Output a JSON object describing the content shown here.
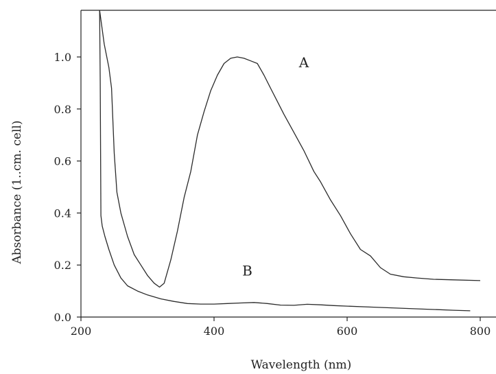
{
  "chart_data": {
    "type": "line",
    "title": "",
    "xlabel": "Wavelength (nm)",
    "ylabel": "Absorbance (1..cm. cell)",
    "xlim": [
      200,
      800
    ],
    "ylim": [
      0,
      1.15
    ],
    "grid": false,
    "legend": "none",
    "x_ticks": [
      200,
      400,
      600,
      800
    ],
    "x_tick_labels": [
      "200",
      "400",
      "600",
      "800"
    ],
    "y_ticks": [
      0.0,
      0.2,
      0.4,
      0.6,
      0.8,
      1.0
    ],
    "y_tick_labels": [
      "0.0",
      "0.2",
      "0.4",
      "0.6",
      "0.8",
      "1.0"
    ],
    "series": [
      {
        "name": "A",
        "label_position": {
          "x": 535,
          "y": 0.96
        },
        "x": [
          228,
          235,
          242,
          246,
          250,
          254,
          260,
          270,
          280,
          290,
          300,
          310,
          318,
          325,
          335,
          345,
          355,
          365,
          375,
          385,
          395,
          405,
          415,
          425,
          435,
          445,
          455,
          465,
          475,
          485,
          495,
          505,
          520,
          535,
          550,
          560,
          575,
          590,
          605,
          620,
          635,
          650,
          665,
          685,
          705,
          730,
          760,
          800
        ],
        "y": [
          1.18,
          1.05,
          0.96,
          0.88,
          0.63,
          0.48,
          0.4,
          0.31,
          0.24,
          0.2,
          0.16,
          0.13,
          0.115,
          0.13,
          0.22,
          0.33,
          0.46,
          0.56,
          0.7,
          0.79,
          0.87,
          0.93,
          0.975,
          0.995,
          1.0,
          0.995,
          0.985,
          0.975,
          0.93,
          0.88,
          0.83,
          0.78,
          0.71,
          0.64,
          0.56,
          0.52,
          0.45,
          0.39,
          0.32,
          0.26,
          0.235,
          0.19,
          0.165,
          0.155,
          0.15,
          0.145,
          0.143,
          0.14
        ]
      },
      {
        "name": "B",
        "label_position": {
          "x": 450,
          "y": 0.16
        },
        "x": [
          228,
          229,
          230,
          232,
          236,
          242,
          250,
          260,
          270,
          285,
          300,
          320,
          340,
          360,
          380,
          400,
          420,
          440,
          460,
          480,
          500,
          520,
          540,
          560,
          580,
          600,
          640,
          680,
          720,
          760,
          785
        ],
        "y": [
          1.18,
          0.9,
          0.39,
          0.35,
          0.31,
          0.26,
          0.2,
          0.15,
          0.12,
          0.1,
          0.085,
          0.07,
          0.06,
          0.052,
          0.05,
          0.05,
          0.052,
          0.054,
          0.056,
          0.052,
          0.046,
          0.045,
          0.049,
          0.047,
          0.044,
          0.042,
          0.038,
          0.034,
          0.03,
          0.026,
          0.024
        ]
      }
    ]
  }
}
